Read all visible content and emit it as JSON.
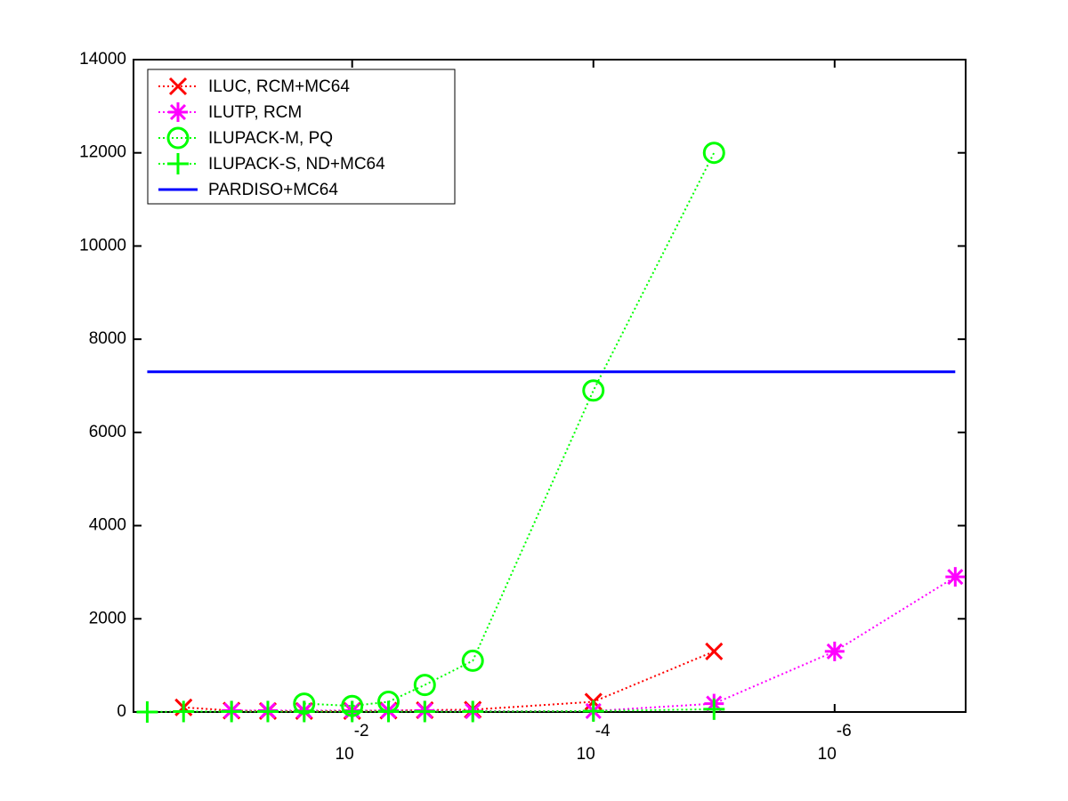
{
  "chart_data": {
    "type": "line",
    "xscale": "log",
    "x_reversed": true,
    "x": [
      0.5,
      0.25,
      0.1,
      0.05,
      0.025,
      0.01,
      0.005,
      0.0025,
      0.001,
      0.0001,
      1e-05,
      1e-06,
      1e-07
    ],
    "xlim": [
      0.65,
      8.2e-08
    ],
    "xticks": [
      {
        "value": 0.01,
        "label": "10",
        "exponent": "-2"
      },
      {
        "value": 0.0001,
        "label": "10",
        "exponent": "-4"
      },
      {
        "value": 1e-06,
        "label": "10",
        "exponent": "-6"
      }
    ],
    "ylim": [
      0,
      14000
    ],
    "yticks": [
      0,
      2000,
      4000,
      6000,
      8000,
      10000,
      12000,
      14000
    ],
    "legend": "upper left",
    "series": [
      {
        "name": "ILUC, RCM+MC64",
        "color": "#ff0000",
        "marker": "x",
        "linestyle": "dotted",
        "values": [
          null,
          100,
          30,
          20,
          20,
          20,
          30,
          40,
          50,
          220,
          1300,
          null,
          null
        ]
      },
      {
        "name": "ILUTP, RCM",
        "color": "#ff00ff",
        "marker": "*",
        "linestyle": "dotted",
        "values": [
          null,
          null,
          30,
          30,
          30,
          30,
          30,
          30,
          20,
          20,
          180,
          1300,
          2900
        ]
      },
      {
        "name": "ILUPACK-M, PQ",
        "color": "#00ff00",
        "marker": "o",
        "linestyle": "dotted",
        "values": [
          null,
          null,
          null,
          null,
          180,
          130,
          220,
          580,
          1100,
          6900,
          12000,
          null,
          null
        ]
      },
      {
        "name": "ILUPACK-S, ND+MC64",
        "color": "#00ff00",
        "marker": "+",
        "linestyle": "dotted",
        "values": [
          0,
          10,
          10,
          10,
          10,
          10,
          10,
          10,
          10,
          20,
          60,
          null,
          null
        ]
      },
      {
        "name": "PARDISO+MC64",
        "color": "#0000ff",
        "marker": "none",
        "linestyle": "solid",
        "values": [
          7300,
          7300,
          7300,
          7300,
          7300,
          7300,
          7300,
          7300,
          7300,
          7300,
          7300,
          7300,
          7300
        ]
      }
    ]
  }
}
